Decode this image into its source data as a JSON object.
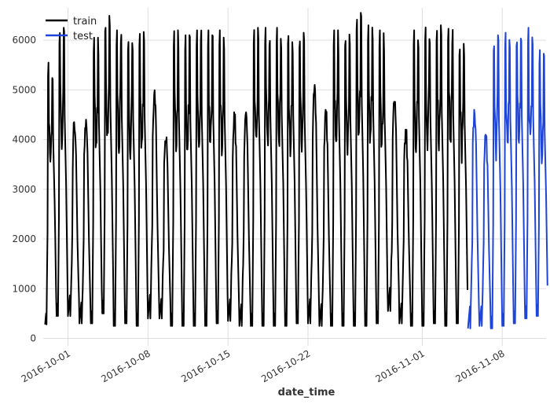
{
  "chart_data": {
    "type": "line",
    "xlabel": "date_time",
    "ylabel": "",
    "title": "",
    "x_range": [
      "2016-09-28T20:00",
      "2016-11-11T20:00"
    ],
    "ylim": [
      -150,
      6650
    ],
    "grid": true,
    "legend_position": "top-left",
    "x_ticks": [
      "2016-10-01",
      "2016-10-08",
      "2016-10-15",
      "2016-10-22",
      "2016-11-01",
      "2016-11-08"
    ],
    "y_ticks": [
      0,
      1000,
      2000,
      3000,
      4000,
      5000,
      6000
    ],
    "series": [
      {
        "name": "train",
        "color": "#000000",
        "x_start": "2016-09-29",
        "x_end": "2016-11-05",
        "daily_peaks": [
          {
            "date": "2016-09-29",
            "max": 5550,
            "min": 280
          },
          {
            "date": "2016-09-30",
            "max": 6250,
            "min": 450
          },
          {
            "date": "2016-10-01",
            "max": 4350,
            "min": 450
          },
          {
            "date": "2016-10-02",
            "max": 4400,
            "min": 300
          },
          {
            "date": "2016-10-03",
            "max": 6050,
            "min": 300
          },
          {
            "date": "2016-10-04",
            "max": 6500,
            "min": 500
          },
          {
            "date": "2016-10-05",
            "max": 6200,
            "min": 250
          },
          {
            "date": "2016-10-06",
            "max": 6100,
            "min": 300
          },
          {
            "date": "2016-10-07",
            "max": 6200,
            "min": 250
          },
          {
            "date": "2016-10-08",
            "max": 5000,
            "min": 400
          },
          {
            "date": "2016-10-09",
            "max": 4100,
            "min": 400
          },
          {
            "date": "2016-10-10",
            "max": 6200,
            "min": 250
          },
          {
            "date": "2016-10-11",
            "max": 6100,
            "min": 250
          },
          {
            "date": "2016-10-12",
            "max": 6200,
            "min": 250
          },
          {
            "date": "2016-10-13",
            "max": 6200,
            "min": 250
          },
          {
            "date": "2016-10-14",
            "max": 6200,
            "min": 300
          },
          {
            "date": "2016-10-15",
            "max": 4550,
            "min": 350
          },
          {
            "date": "2016-10-16",
            "max": 4550,
            "min": 250
          },
          {
            "date": "2016-10-17",
            "max": 6250,
            "min": 250
          },
          {
            "date": "2016-10-18",
            "max": 6250,
            "min": 250
          },
          {
            "date": "2016-10-19",
            "max": 6250,
            "min": 250
          },
          {
            "date": "2016-10-20",
            "max": 6250,
            "min": 250
          },
          {
            "date": "2016-10-21",
            "max": 6150,
            "min": 300
          },
          {
            "date": "2016-10-22",
            "max": 5100,
            "min": 300
          },
          {
            "date": "2016-10-23",
            "max": 4600,
            "min": 250
          },
          {
            "date": "2016-10-24",
            "max": 6200,
            "min": 250
          },
          {
            "date": "2016-10-25",
            "max": 6200,
            "min": 250
          },
          {
            "date": "2016-10-26",
            "max": 6550,
            "min": 250
          },
          {
            "date": "2016-10-27",
            "max": 6300,
            "min": 250
          },
          {
            "date": "2016-10-28",
            "max": 6200,
            "min": 300
          },
          {
            "date": "2016-10-29",
            "max": 4900,
            "min": 550
          },
          {
            "date": "2016-10-30",
            "max": 4200,
            "min": 300
          },
          {
            "date": "2016-10-31",
            "max": 6200,
            "min": 250
          },
          {
            "date": "2016-11-01",
            "max": 6300,
            "min": 250
          },
          {
            "date": "2016-11-02",
            "max": 6300,
            "min": 300
          },
          {
            "date": "2016-11-03",
            "max": 6300,
            "min": 250
          },
          {
            "date": "2016-11-04",
            "max": 6000,
            "min": 300
          }
        ]
      },
      {
        "name": "test",
        "color": "#1f45d6",
        "x_start": "2016-11-05",
        "x_end": "2016-11-11",
        "daily_peaks": [
          {
            "date": "2016-11-05",
            "max": 4600,
            "min": 200
          },
          {
            "date": "2016-11-06",
            "max": 4100,
            "min": 250
          },
          {
            "date": "2016-11-07",
            "max": 6100,
            "min": 200
          },
          {
            "date": "2016-11-08",
            "max": 6150,
            "min": 250
          },
          {
            "date": "2016-11-09",
            "max": 6200,
            "min": 300
          },
          {
            "date": "2016-11-10",
            "max": 6250,
            "min": 400
          },
          {
            "date": "2016-11-11",
            "max": 5800,
            "min": 450
          }
        ]
      }
    ]
  }
}
